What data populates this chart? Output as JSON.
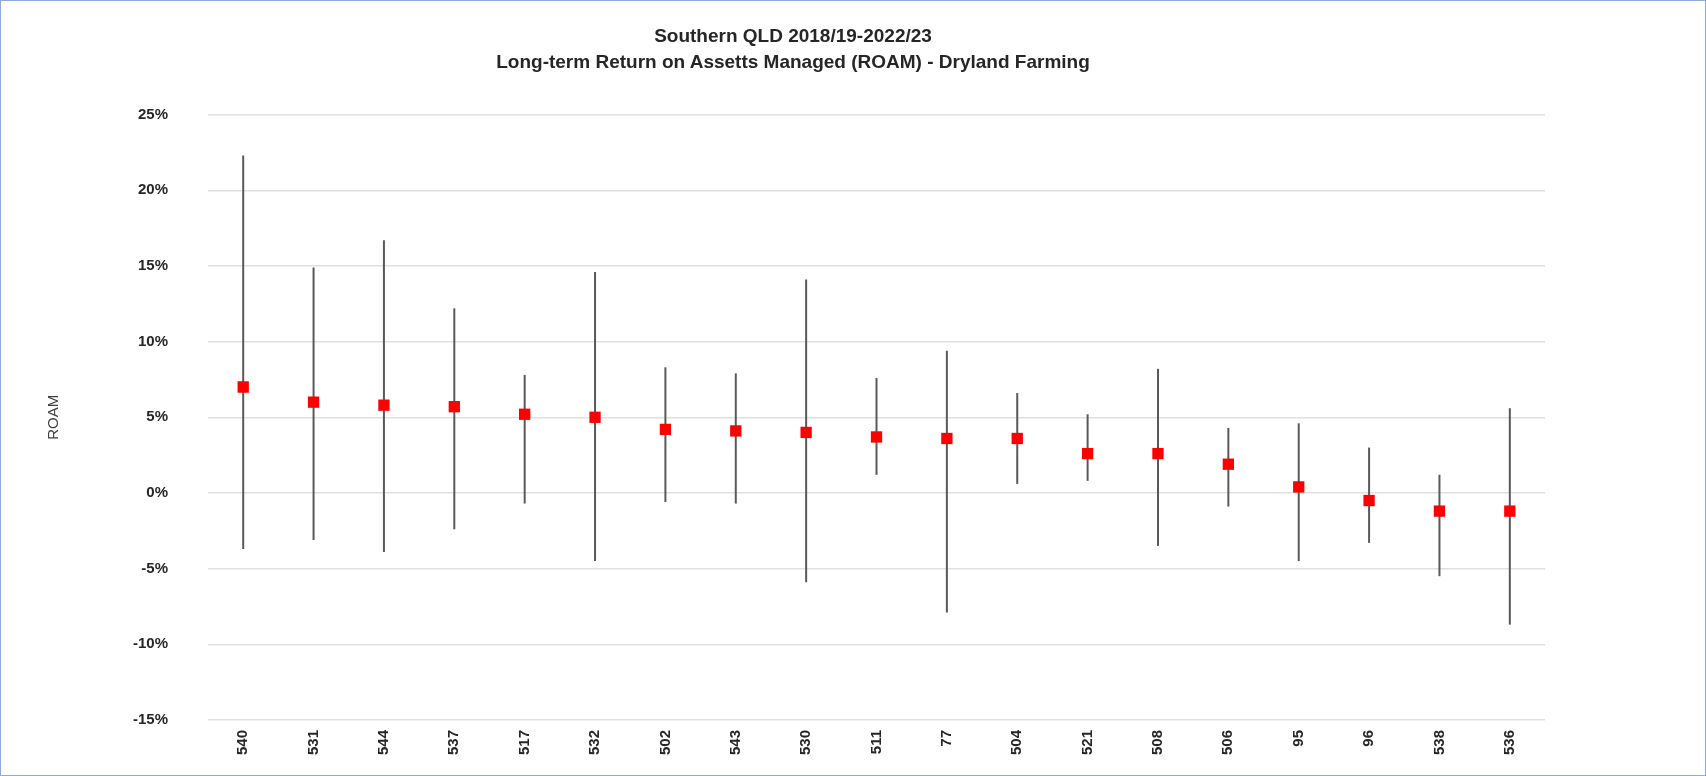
{
  "chart_data": {
    "type": "scatter",
    "title": "Southern QLD 2018/19-2022/23",
    "subtitle": "Long-term Return on Assetts Managed (ROAM) - Dryland Farming",
    "ylabel": "ROAM",
    "categories": [
      "540",
      "531",
      "544",
      "537",
      "517",
      "532",
      "502",
      "543",
      "530",
      "511",
      "77",
      "504",
      "521",
      "508",
      "506",
      "95",
      "96",
      "538",
      "536"
    ],
    "values": [
      7.0,
      6.0,
      5.8,
      5.7,
      5.2,
      5.0,
      4.2,
      4.1,
      4.0,
      3.7,
      3.6,
      3.6,
      2.6,
      2.6,
      1.9,
      0.4,
      -0.5,
      -1.2,
      -1.2
    ],
    "errors": [
      [
        -3.7,
        22.3
      ],
      [
        -3.1,
        14.9
      ],
      [
        -3.9,
        16.7
      ],
      [
        -2.4,
        12.2
      ],
      [
        -0.7,
        7.8
      ],
      [
        -4.5,
        14.6
      ],
      [
        -0.6,
        8.3
      ],
      [
        -0.7,
        7.9
      ],
      [
        -5.9,
        14.1
      ],
      [
        1.2,
        7.6
      ],
      [
        -7.9,
        9.4
      ],
      [
        0.6,
        6.6
      ],
      [
        0.8,
        5.2
      ],
      [
        -3.5,
        8.2
      ],
      [
        -0.9,
        4.3
      ],
      [
        -4.5,
        4.6
      ],
      [
        -3.3,
        3.0
      ],
      [
        -5.5,
        1.2
      ],
      [
        -8.7,
        5.6
      ]
    ],
    "color": "#ff0000",
    "marker": "square",
    "grid": "y",
    "legend": false,
    "ylim": [
      -15,
      25
    ],
    "yticks": [
      {
        "value": -15,
        "label": "-15%"
      },
      {
        "value": -10,
        "label": "-10%"
      },
      {
        "value": -5,
        "label": "-5%"
      },
      {
        "value": 0,
        "label": "0%"
      },
      {
        "value": 5,
        "label": "5%"
      },
      {
        "value": 10,
        "label": "10%"
      },
      {
        "value": 15,
        "label": "15%"
      },
      {
        "value": 20,
        "label": "20%"
      },
      {
        "value": 25,
        "label": "25%"
      }
    ]
  }
}
